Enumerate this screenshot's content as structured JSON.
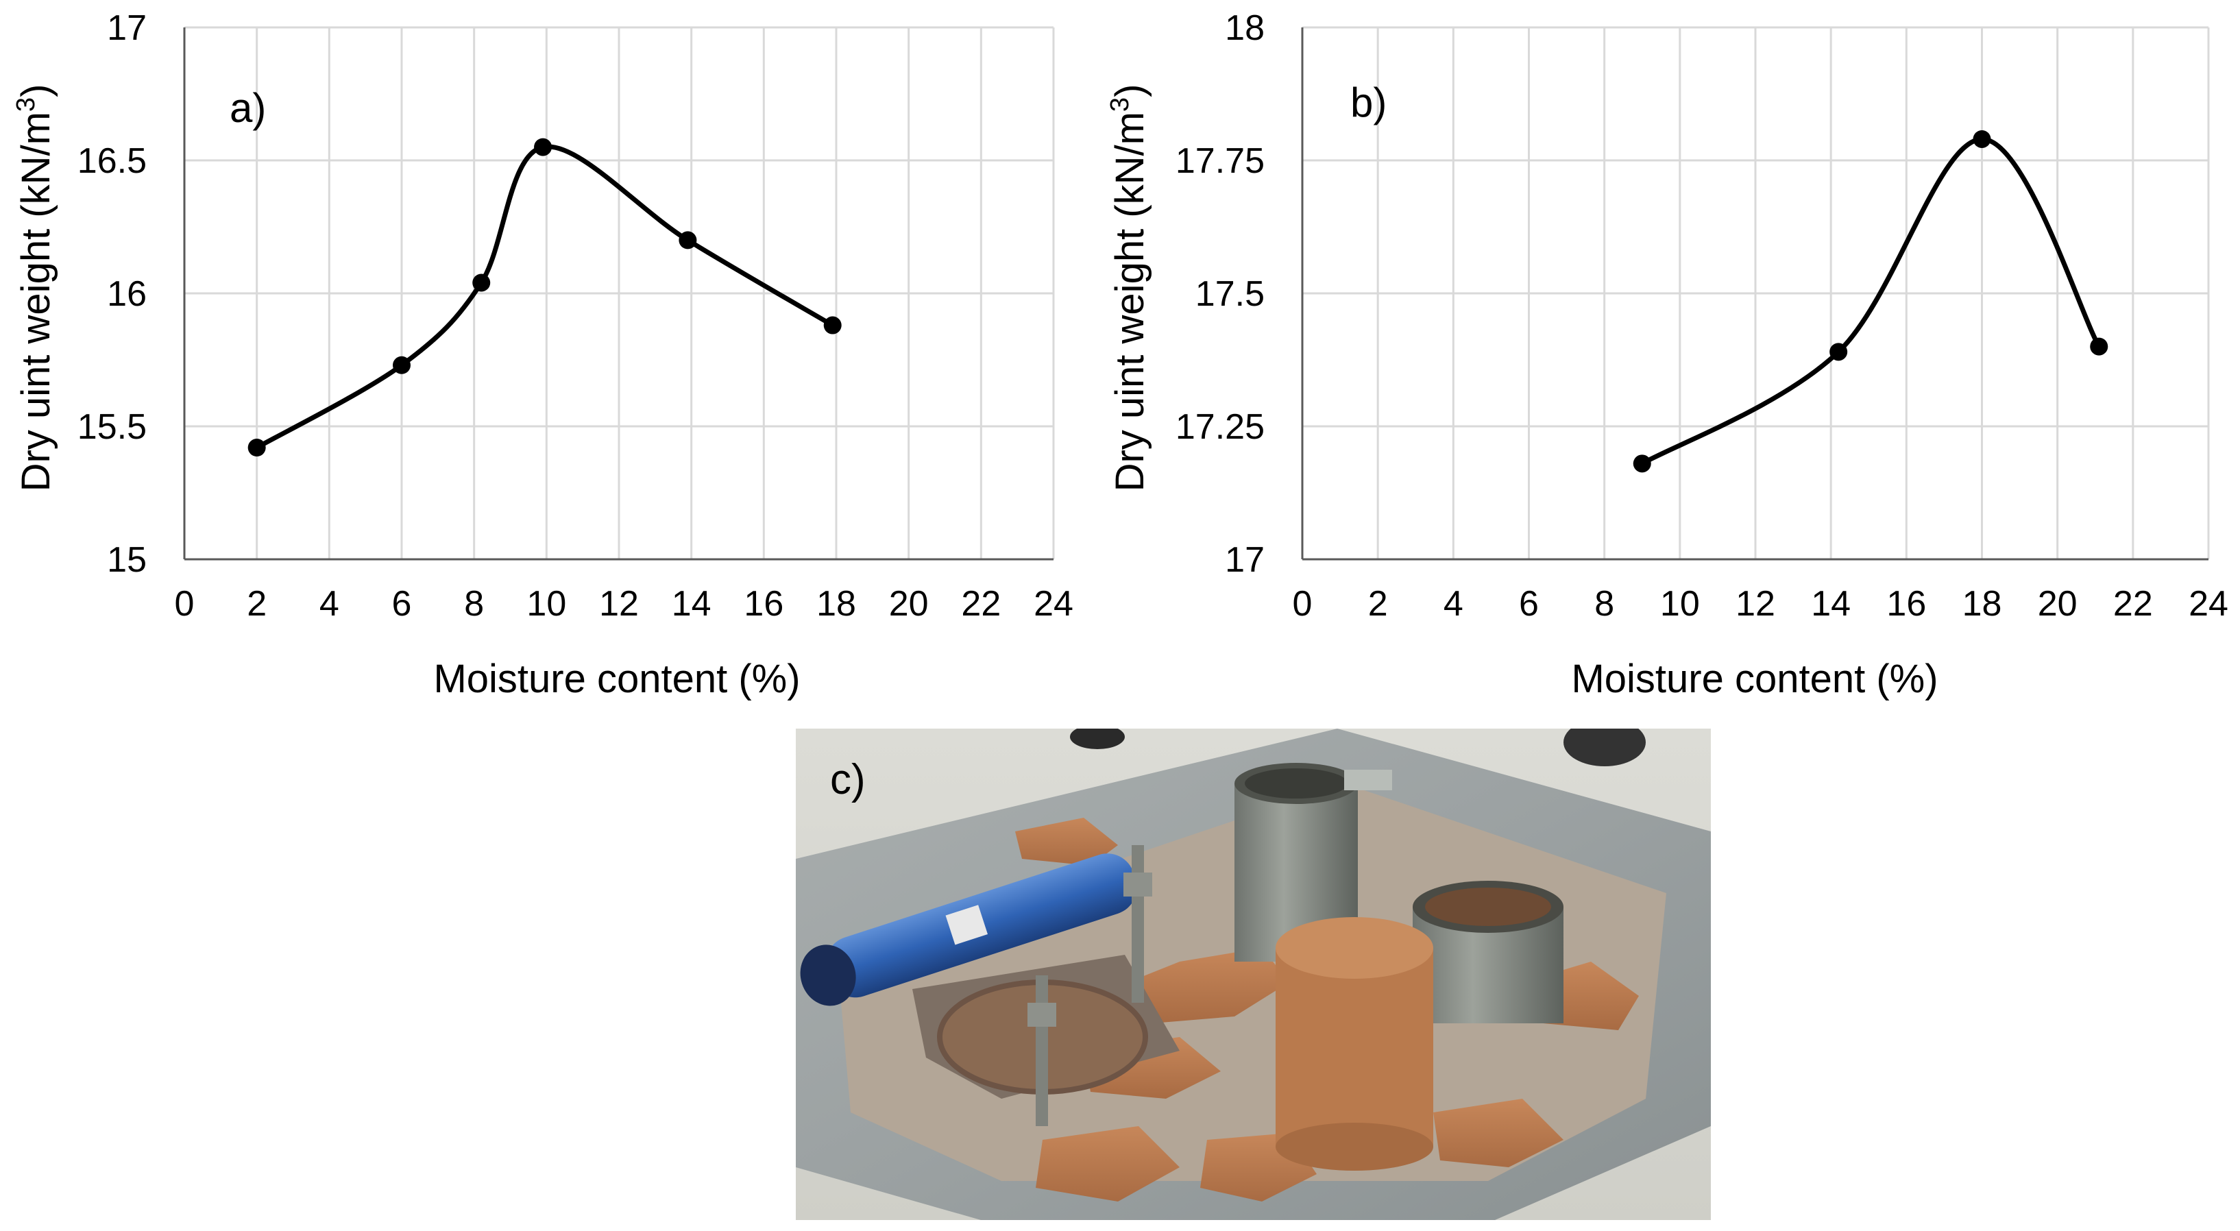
{
  "chart_data": [
    {
      "type": "line",
      "panel_label": "a)",
      "xlabel": "Moisture content (%)",
      "ylabel_main": "Dry uint weight (kN/m",
      "ylabel_sup": "3",
      "ylabel_end": ")",
      "xlim": [
        0,
        24
      ],
      "ylim": [
        15,
        17
      ],
      "xticks": [
        "0",
        "2",
        "4",
        "6",
        "8",
        "10",
        "12",
        "14",
        "16",
        "18",
        "20",
        "22",
        "24"
      ],
      "yticks": [
        "15",
        "15.5",
        "16",
        "16.5",
        "17"
      ],
      "grid": true,
      "smooth": true,
      "series": [
        {
          "x": [
            2,
            6,
            8.2,
            9.9,
            13.9,
            17.9
          ],
          "y": [
            15.42,
            15.73,
            16.04,
            16.55,
            16.2,
            15.88
          ]
        }
      ]
    },
    {
      "type": "line",
      "panel_label": "b)",
      "xlabel": "Moisture content (%)",
      "ylabel_main": "Dry uint weight (kN/m",
      "ylabel_sup": "3",
      "ylabel_end": ")",
      "xlim": [
        0,
        24
      ],
      "ylim": [
        17,
        18
      ],
      "xticks": [
        "0",
        "2",
        "4",
        "6",
        "8",
        "10",
        "12",
        "14",
        "16",
        "18",
        "20",
        "22",
        "24"
      ],
      "yticks": [
        "17",
        "17.25",
        "17.5",
        "17.75",
        "18"
      ],
      "grid": true,
      "smooth": true,
      "series": [
        {
          "x": [
            9,
            14.2,
            18,
            21.1
          ],
          "y": [
            17.18,
            17.39,
            17.79,
            17.4
          ]
        }
      ]
    }
  ],
  "photo": {
    "panel_label": "c)"
  },
  "colors": {
    "line": "#000000",
    "grid": "#d9d9d9",
    "axis": "#595959",
    "text": "#000000"
  }
}
